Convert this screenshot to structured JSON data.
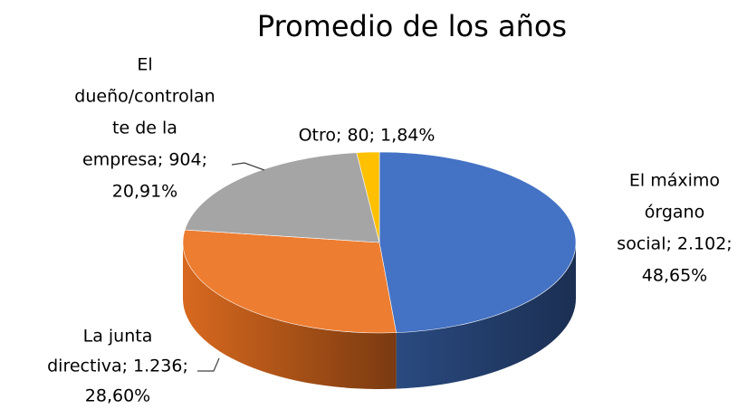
{
  "chart_data": {
    "type": "pie",
    "title": "Promedio de los años",
    "values": [
      2102,
      1236,
      904,
      80
    ],
    "value_labels": [
      [
        "El máximo",
        "órgano",
        "social; 2.102;",
        "48,65%"
      ],
      [
        "La junta",
        "directiva; 1.236;",
        "28,60%"
      ],
      [
        "El",
        "dueño/controlan",
        "te de la",
        "empresa; 904;",
        "20,91%"
      ],
      [
        "Otro; 80; 1,84%"
      ]
    ],
    "colors": [
      "#4472c4",
      "#ed7d31",
      "#a5a5a5",
      "#ffc000"
    ]
  }
}
